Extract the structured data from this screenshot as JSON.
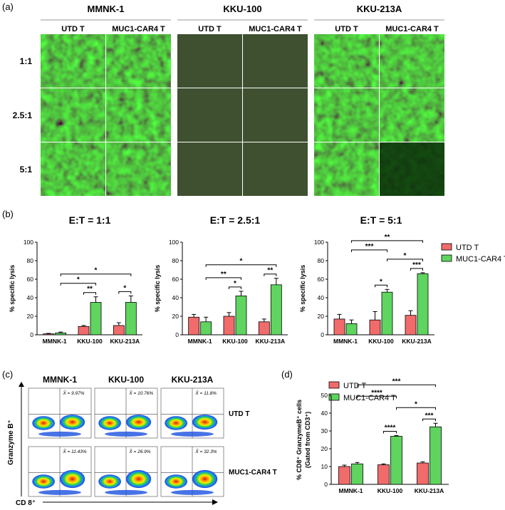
{
  "panel_a": {
    "label": "(a)",
    "cell_lines": [
      "MMNK-1",
      "KKU-100",
      "KKU-213A"
    ],
    "conditions": [
      "UTD T",
      "MUC1-CAR4 T"
    ],
    "ratios": [
      "1:1",
      "2.5:1",
      "5:1"
    ],
    "colors": {
      "fluorescence": "#22d022",
      "background": "#062806"
    }
  },
  "panel_b": {
    "label": "(b)",
    "legend": [
      "UTD T",
      "MUC1-CAR4 T"
    ],
    "colors": {
      "utd": "#f26b6b",
      "car": "#5fd45f"
    }
  },
  "panel_c": {
    "label": "(c)",
    "cell_lines": [
      "MMNK-1",
      "KKU-100",
      "KKU-213A"
    ],
    "row_labels": [
      "UTD T",
      "MUC1-CAR4 T"
    ],
    "y_axis": "Granzyme B⁺",
    "x_axis": "CD 8⁺",
    "means": [
      [
        "X̄ = 9.97%",
        "X̄ = 10.76%",
        "X̄ = 11.8%"
      ],
      [
        "X̄ = 11.43%",
        "X̄ = 26.9%",
        "X̄ = 32.3%"
      ]
    ]
  },
  "panel_d": {
    "label": "(d)",
    "legend": [
      "UTD T",
      "MUC1-CAR4 T"
    ]
  },
  "chart_data": [
    {
      "type": "bar",
      "title": "E:T = 1:1",
      "categories": [
        "MMNK-1",
        "KKU-100",
        "KKU-213A"
      ],
      "series": [
        {
          "name": "UTD T",
          "values": [
            1,
            9,
            10
          ],
          "errors": [
            0.5,
            1,
            3
          ]
        },
        {
          "name": "MUC1-CAR4 T",
          "values": [
            2,
            35,
            35
          ],
          "errors": [
            1,
            6,
            7
          ]
        }
      ],
      "ylabel": "% specific lysis",
      "ylim": [
        0,
        100
      ],
      "yticks": [
        0,
        20,
        40,
        60,
        80,
        100
      ],
      "significance": [
        {
          "from": [
            1,
            0
          ],
          "to": [
            1,
            1
          ],
          "label": "**"
        },
        {
          "from": [
            0,
            1
          ],
          "to": [
            1,
            1
          ],
          "label": "*"
        },
        {
          "from": [
            2,
            0
          ],
          "to": [
            2,
            1
          ],
          "label": "*"
        },
        {
          "from": [
            0,
            1
          ],
          "to": [
            2,
            1
          ],
          "label": "*"
        }
      ]
    },
    {
      "type": "bar",
      "title": "E:T = 2.5:1",
      "categories": [
        "MMNK-1",
        "KKU-100",
        "KKU-213A"
      ],
      "series": [
        {
          "name": "UTD T",
          "values": [
            19,
            20,
            14
          ],
          "errors": [
            3,
            4,
            3
          ]
        },
        {
          "name": "MUC1-CAR4 T",
          "values": [
            14,
            42,
            54
          ],
          "errors": [
            5,
            5,
            7
          ]
        }
      ],
      "ylabel": "% specific lysis",
      "ylim": [
        0,
        100
      ],
      "yticks": [
        0,
        20,
        40,
        60,
        80,
        100
      ],
      "significance": [
        {
          "from": [
            1,
            0
          ],
          "to": [
            1,
            1
          ],
          "label": "*"
        },
        {
          "from": [
            0,
            1
          ],
          "to": [
            1,
            1
          ],
          "label": "**"
        },
        {
          "from": [
            2,
            0
          ],
          "to": [
            2,
            1
          ],
          "label": "**"
        },
        {
          "from": [
            0,
            1
          ],
          "to": [
            2,
            1
          ],
          "label": "*"
        }
      ]
    },
    {
      "type": "bar",
      "title": "E:T = 5:1",
      "categories": [
        "MMNK-1",
        "KKU-100",
        "KKU-213A"
      ],
      "series": [
        {
          "name": "UTD T",
          "values": [
            17,
            16,
            21
          ],
          "errors": [
            5,
            9,
            5
          ]
        },
        {
          "name": "MUC1-CAR4 T",
          "values": [
            12,
            46,
            66
          ],
          "errors": [
            4,
            3,
            1
          ]
        }
      ],
      "ylabel": "% specific lysis",
      "ylim": [
        0,
        100
      ],
      "yticks": [
        0,
        20,
        40,
        60,
        80,
        100
      ],
      "significance": [
        {
          "from": [
            1,
            0
          ],
          "to": [
            1,
            1
          ],
          "label": "*"
        },
        {
          "from": [
            2,
            0
          ],
          "to": [
            2,
            1
          ],
          "label": "***"
        },
        {
          "from": [
            1,
            1
          ],
          "to": [
            2,
            1
          ],
          "label": "*"
        },
        {
          "from": [
            0,
            1
          ],
          "to": [
            1,
            1
          ],
          "label": "***"
        },
        {
          "from": [
            0,
            1
          ],
          "to": [
            2,
            1
          ],
          "label": "**"
        }
      ]
    },
    {
      "type": "bar",
      "title": "",
      "categories": [
        "MMNK-1",
        "KKU-100",
        "KKU-213A"
      ],
      "series": [
        {
          "name": "UTD T",
          "values": [
            10,
            11,
            12
          ],
          "errors": [
            0.8,
            0.5,
            0.7
          ]
        },
        {
          "name": "MUC1-CAR4 T",
          "values": [
            11.5,
            27,
            32.3
          ],
          "errors": [
            0.8,
            0.4,
            2
          ]
        }
      ],
      "ylabel": "% CD8⁺ GranzymeB⁺ cells",
      "ylabel2": "(Gated from CD3⁺)",
      "ylim": [
        0,
        50
      ],
      "yticks": [
        0,
        10,
        20,
        30,
        40,
        50
      ],
      "significance": [
        {
          "from": [
            1,
            0
          ],
          "to": [
            1,
            1
          ],
          "label": "****"
        },
        {
          "from": [
            2,
            0
          ],
          "to": [
            2,
            1
          ],
          "label": "***"
        },
        {
          "from": [
            1,
            1
          ],
          "to": [
            2,
            1
          ],
          "label": "*"
        },
        {
          "from": [
            0,
            1
          ],
          "to": [
            1,
            1
          ],
          "label": "****"
        },
        {
          "from": [
            0,
            1
          ],
          "to": [
            2,
            1
          ],
          "label": "***"
        }
      ]
    }
  ]
}
